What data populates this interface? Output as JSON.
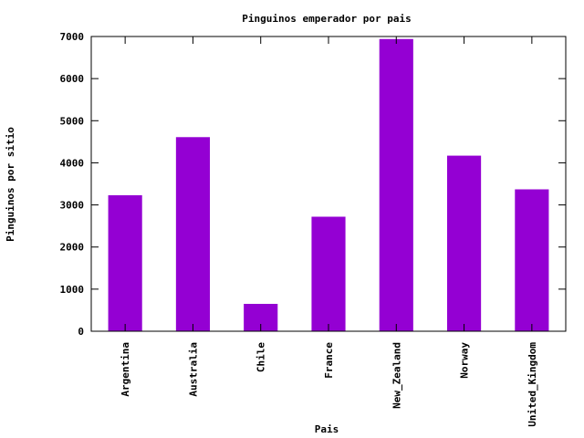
{
  "chart_data": {
    "type": "bar",
    "title": "Pinguinos emperador por pais",
    "xlabel": "Pais",
    "ylabel": "Pinguinos por sitio",
    "categories": [
      "Argentina",
      "Australia",
      "Chile",
      "France",
      "New_Zealand",
      "Norway",
      "United_Kingdom"
    ],
    "values": [
      3230,
      4610,
      650,
      2720,
      6940,
      4170,
      3370
    ],
    "ylim": [
      0,
      7000
    ],
    "yticks": [
      0,
      1000,
      2000,
      3000,
      4000,
      5000,
      6000,
      7000
    ],
    "bar_color": "#9400D3",
    "grid": false
  }
}
